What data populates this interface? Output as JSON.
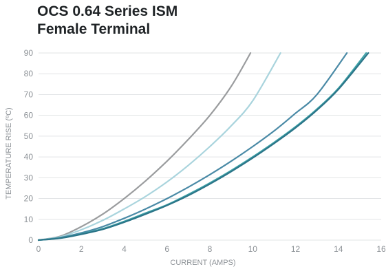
{
  "chart_data": {
    "type": "line",
    "title_lines": [
      "OCS 0.64 Series ISM",
      "Female Terminal"
    ],
    "xlabel": "CURRENT (AMPS)",
    "ylabel": "TEMPERATURE RISE (ºC)",
    "xlim": [
      0,
      16
    ],
    "ylim": [
      0,
      90
    ],
    "x_ticks": [
      0,
      2,
      4,
      6,
      8,
      10,
      12,
      14,
      16
    ],
    "y_ticks": [
      0,
      10,
      20,
      30,
      40,
      50,
      60,
      70,
      80,
      90
    ],
    "grid": "horizontal",
    "legend": "none",
    "series": [
      {
        "color": "#9a9c9e",
        "x": [
          0,
          1,
          2,
          3,
          4,
          5,
          6,
          7,
          8,
          9,
          9.9
        ],
        "y": [
          0,
          1.8,
          6.5,
          12.5,
          20,
          28.5,
          38,
          48.5,
          60,
          74,
          90
        ]
      },
      {
        "color": "#a9d4dd",
        "x": [
          0,
          1,
          2,
          3,
          4,
          5,
          6,
          7,
          8,
          9,
          10,
          11.3
        ],
        "y": [
          0,
          1.5,
          5,
          9.5,
          15,
          21,
          28,
          36,
          45,
          55,
          67,
          90
        ]
      },
      {
        "color": "#4a8aa6",
        "x": [
          0,
          1,
          2,
          3,
          4,
          5,
          6,
          7,
          8,
          9,
          10,
          11,
          12,
          13,
          14.4
        ],
        "y": [
          0,
          1.2,
          3.5,
          6.5,
          10.5,
          15,
          20,
          25.5,
          31.5,
          38,
          45,
          52.5,
          61,
          70,
          90
        ]
      },
      {
        "color": "#3ea3a8",
        "x": [
          0,
          1,
          2,
          3,
          4,
          5,
          6,
          7,
          8,
          9,
          10,
          11,
          12,
          13,
          14,
          15.3
        ],
        "y": [
          0,
          1,
          3,
          5.5,
          9,
          13,
          17,
          22,
          27.5,
          33.5,
          40,
          47,
          54.5,
          63,
          73,
          90
        ]
      },
      {
        "color": "#2b7488",
        "x": [
          0,
          1,
          2,
          3,
          4,
          5,
          6,
          7,
          8,
          9,
          10,
          11,
          12,
          13,
          14,
          15.4
        ],
        "y": [
          0,
          0.9,
          2.8,
          5.2,
          8.6,
          12.5,
          16.7,
          21.5,
          27,
          33,
          39.5,
          46.5,
          54,
          62.5,
          72.5,
          90
        ]
      }
    ]
  }
}
